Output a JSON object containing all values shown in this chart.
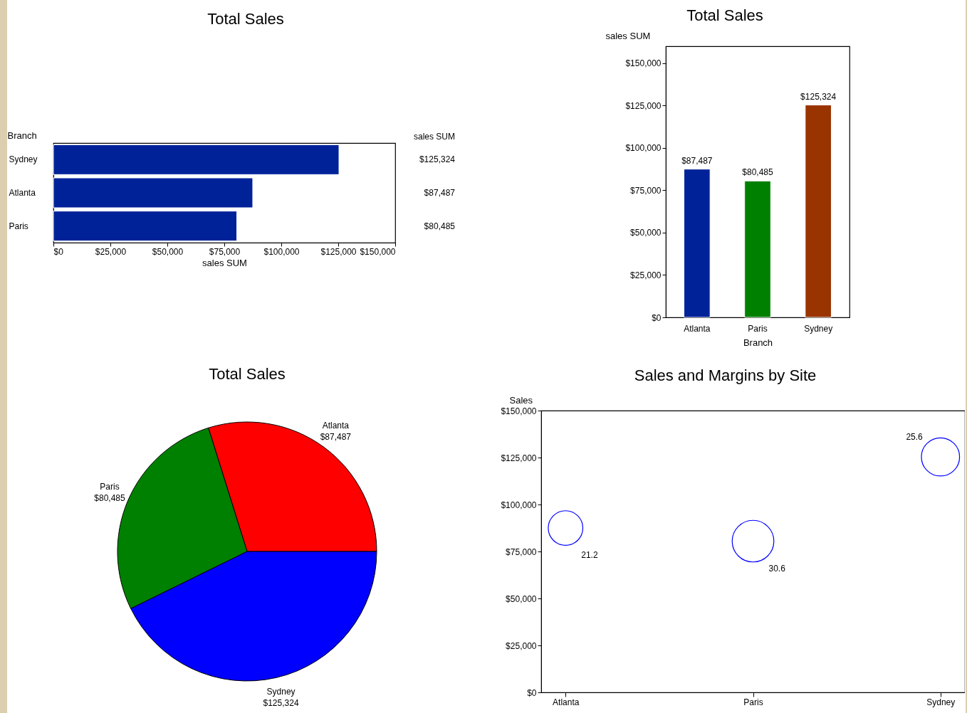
{
  "chart_data": [
    {
      "type": "bar",
      "orientation": "horizontal",
      "title": "Total Sales",
      "xlabel": "sales SUM",
      "ylabel": "Branch",
      "categories": [
        "Sydney",
        "Atlanta",
        "Paris"
      ],
      "values": [
        125324,
        87487,
        80485
      ],
      "value_labels": [
        "$125,324",
        "$87,487",
        "$80,485"
      ],
      "color": "#002299",
      "xlim": [
        0,
        150000
      ],
      "xticks": [
        {
          "value": 0,
          "label": "$0"
        },
        {
          "value": 25000,
          "label": "$25,000"
        },
        {
          "value": 50000,
          "label": "$50,000"
        },
        {
          "value": 75000,
          "label": "$75,000"
        },
        {
          "value": 100000,
          "label": "$100,000"
        },
        {
          "value": 125000,
          "label": "$125,000"
        },
        {
          "value": 150000,
          "label": "$150,000"
        }
      ],
      "annotations": [
        "sales SUM"
      ]
    },
    {
      "type": "bar",
      "title": "Total Sales",
      "xlabel": "Branch",
      "ylabel": "sales SUM",
      "categories": [
        "Atlanta",
        "Paris",
        "Sydney"
      ],
      "values": [
        87487,
        80485,
        125324
      ],
      "value_labels": [
        "$87,487",
        "$80,485",
        "$125,324"
      ],
      "colors": [
        "#002299",
        "#008000",
        "#993300"
      ],
      "ylim": [
        0,
        160000
      ],
      "yticks": [
        {
          "value": 0,
          "label": "$0"
        },
        {
          "value": 25000,
          "label": "$25,000"
        },
        {
          "value": 50000,
          "label": "$50,000"
        },
        {
          "value": 75000,
          "label": "$75,000"
        },
        {
          "value": 100000,
          "label": "$100,000"
        },
        {
          "value": 125000,
          "label": "$125,000"
        },
        {
          "value": 150000,
          "label": "$150,000"
        }
      ]
    },
    {
      "type": "pie",
      "title": "Total Sales",
      "categories": [
        "Atlanta",
        "Paris",
        "Sydney"
      ],
      "values": [
        87487,
        80485,
        125324
      ],
      "value_labels": [
        "$87,487",
        "$80,485",
        "$125,324"
      ],
      "colors": [
        "#ff0000",
        "#008000",
        "#0000ff"
      ]
    },
    {
      "type": "bubble",
      "title": "Sales and Margins by Site",
      "ylabel": "Sales",
      "categories": [
        "Atlanta",
        "Paris",
        "Sydney"
      ],
      "values": [
        87487,
        80485,
        125324
      ],
      "sizes": [
        0.69,
        1,
        0.84
      ],
      "color": "#0000ff",
      "marker": "circle",
      "ylim": [
        0,
        150000
      ],
      "yticks": [
        {
          "value": 0,
          "label": "$0"
        },
        {
          "value": 25000,
          "label": "$25,000"
        },
        {
          "value": 50000,
          "label": "$50,000"
        },
        {
          "value": 75000,
          "label": "$75,000"
        },
        {
          "value": 100000,
          "label": "$100,000"
        },
        {
          "value": 125000,
          "label": "$125,000"
        },
        {
          "value": 150000,
          "label": "$150,000"
        }
      ],
      "annotations": [
        "21.2",
        "30.6",
        "25.6"
      ]
    }
  ]
}
